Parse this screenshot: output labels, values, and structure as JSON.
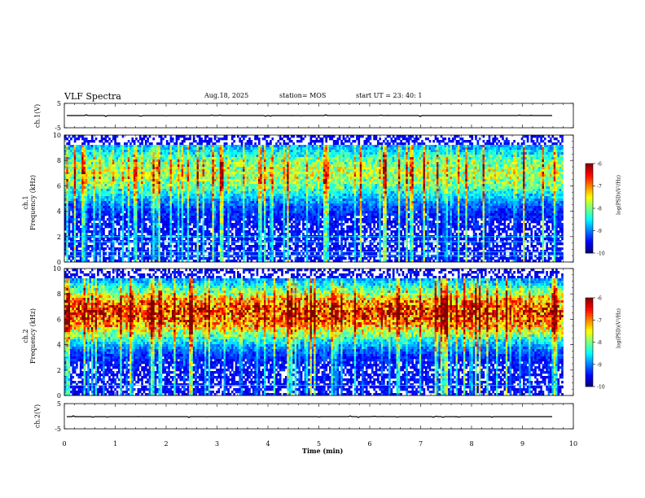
{
  "header": {
    "title": "VLF Spectra",
    "date": "Aug.18, 2025",
    "station": "station= MOS",
    "start_ut": "start  UT  =   23: 40: 1"
  },
  "chart_data": {
    "type": "heatmap",
    "title": "VLF Spectra",
    "xlabel": "Time  (min)",
    "xlim": [
      0,
      10
    ],
    "x_ticks": [
      "0",
      "1",
      "2",
      "3",
      "4",
      "5",
      "6",
      "7",
      "8",
      "9",
      "10"
    ],
    "panels": [
      {
        "name": "ch.1(V)",
        "type": "line",
        "ylim": [
          -5,
          5
        ],
        "y_ticks": [
          "5",
          "-5"
        ],
        "level": 0
      },
      {
        "name": "ch.1 Frequency (kHz)",
        "type": "heatmap",
        "ylim": [
          0,
          10
        ],
        "y_ticks": [
          "0",
          "2",
          "4",
          "6",
          "8",
          "10"
        ],
        "colorbar": {
          "label": "log(PSD)(V²/Hz)",
          "ticks": [
            "-6",
            "-7",
            "-8",
            "-9",
            "-10"
          ],
          "range": [
            -10,
            -6
          ]
        },
        "band_center_khz": 7.0,
        "band_level": -8.0,
        "horizontal_lines_khz": [
          0.5,
          0.8,
          1.6,
          2.0
        ]
      },
      {
        "name": "ch.2 Frequency (kHz)",
        "type": "heatmap",
        "ylim": [
          0,
          10
        ],
        "y_ticks": [
          "0",
          "2",
          "4",
          "6",
          "8",
          "10"
        ],
        "colorbar": {
          "label": "log(PSD)(V²/Hz)",
          "ticks": [
            "-6",
            "-7",
            "-8",
            "-9",
            "-10"
          ],
          "range": [
            -10,
            -6
          ]
        },
        "band_center_khz": 6.5,
        "band_level": -6.8,
        "horizontal_lines_khz": [
          0.8
        ]
      },
      {
        "name": "ch.2(V)",
        "type": "line",
        "ylim": [
          -5,
          5
        ],
        "y_ticks": [
          "5",
          "-5"
        ],
        "level": 0
      }
    ],
    "data_end_min": 9.8
  },
  "labels": {
    "ch1v": "ch.1(V)",
    "ch1freq_a": "ch.1",
    "ch1freq_b": "Frequency  (kHz)",
    "ch2freq_a": "ch.2",
    "ch2freq_b": "Frequency  (kHz)",
    "ch2v": "ch.2(V)",
    "cbar1": "log(PSD)(V²/Hz)",
    "cbar2": "log(PSD)(V²/Hz)"
  }
}
